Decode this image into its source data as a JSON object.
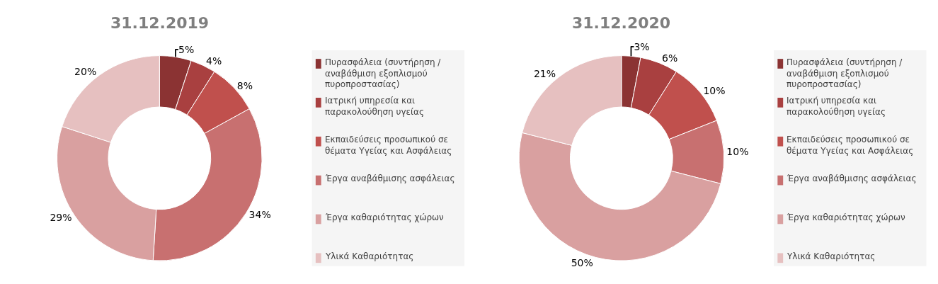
{
  "chart_data": [
    {
      "type": "donut",
      "title": "31.12.2019",
      "categories": [
        "Πυρασφάλεια (συντήρηση / αναβάθμιση εξοπλισμού πυροπροστασίας)",
        "Ιατρική υπηρεσία και παρακολούθηση υγείας",
        "Εκπαιδεύσεις προσωπικού σε θέματα Υγείας και Ασφάλειας",
        "Έργα αναβάθμισης ασφάλειας",
        "Έργα καθαριότητας χώρων",
        "Υλικά Καθαριότητας"
      ],
      "values": [
        5,
        4,
        8,
        34,
        29,
        20
      ],
      "value_labels": [
        "5%",
        "4%",
        "8%",
        "34%",
        "29%",
        "20%"
      ],
      "colors": [
        "#8b3333",
        "#a94040",
        "#c0504d",
        "#c87070",
        "#d9a0a0",
        "#e6c0c0"
      ],
      "legend": "right"
    },
    {
      "type": "donut",
      "title": "31.12.2020",
      "categories": [
        "Πυρασφάλεια (συντήρηση / αναβάθμιση εξοπλισμού πυροπροστασίας)",
        "Ιατρική υπηρεσία και παρακολούθηση υγείας",
        "Εκπαιδεύσεις προσωπικού σε θέματα Υγείας και Ασφάλειας",
        "Έργα αναβάθμισης ασφάλειας",
        "Έργα καθαριότητας χώρων",
        "Υλικά Καθαριότητας"
      ],
      "values": [
        3,
        6,
        10,
        10,
        50,
        21
      ],
      "value_labels": [
        "3%",
        "6%",
        "10%",
        "10%",
        "50%",
        "21%"
      ],
      "colors": [
        "#8b3333",
        "#a94040",
        "#c0504d",
        "#c87070",
        "#d9a0a0",
        "#e6c0c0"
      ],
      "legend": "right"
    }
  ]
}
